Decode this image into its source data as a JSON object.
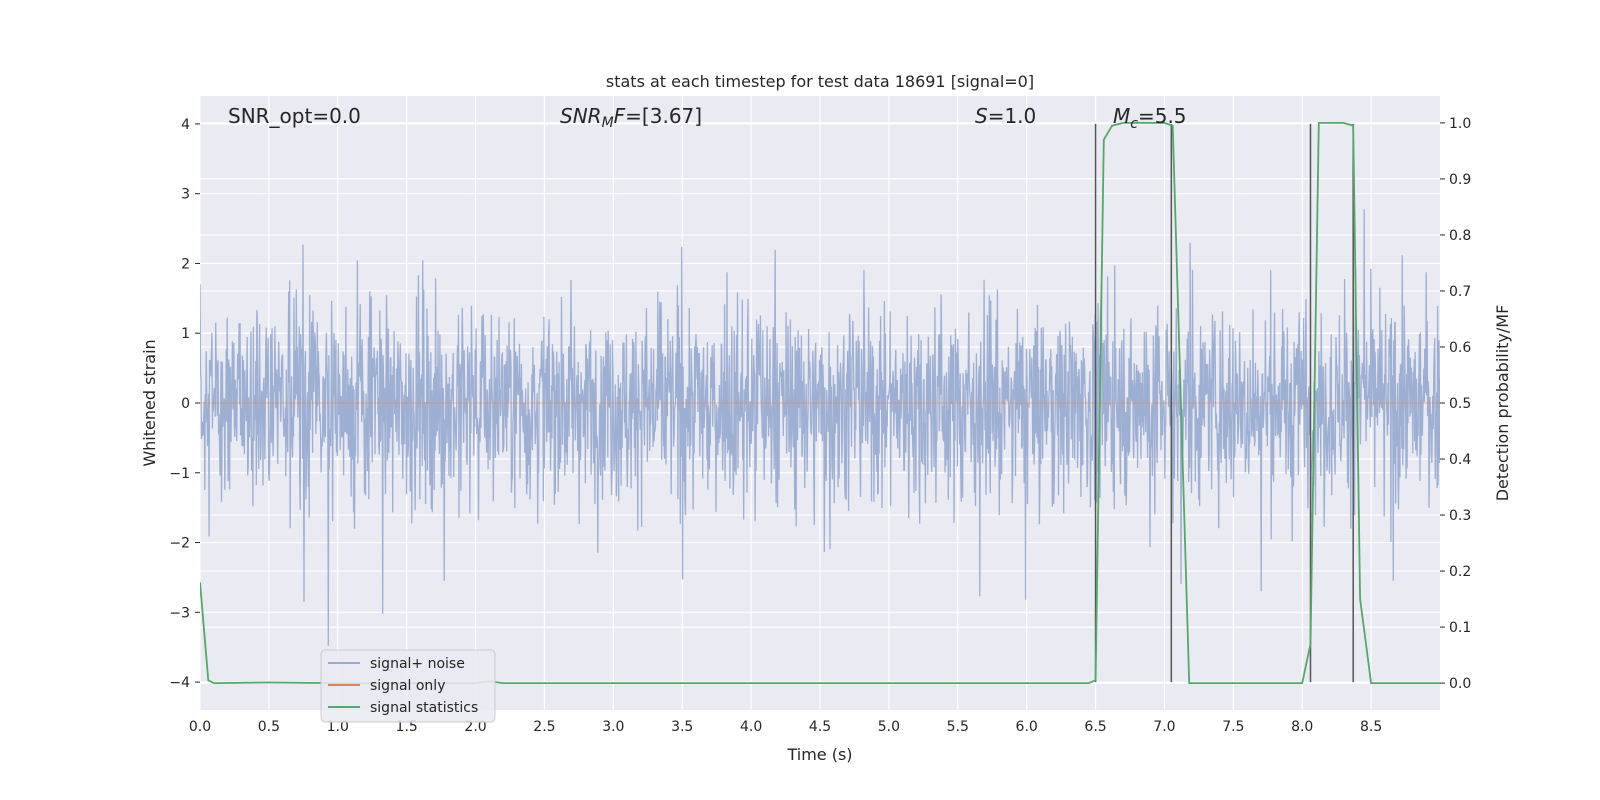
{
  "chart_data": {
    "type": "line",
    "title": "stats at each timestep for test data 18691 [signal=0]",
    "xlabel": "Time (s)",
    "ylabel": "Whitened strain",
    "ylabel_right": "Detection probability/MF",
    "xlim": [
      0.0,
      9.0
    ],
    "ylim": [
      -4.4,
      4.4
    ],
    "ylim_right": [
      -0.048,
      1.048
    ],
    "x_ticks": [
      "0.0",
      "0.5",
      "1.0",
      "1.5",
      "2.0",
      "2.5",
      "3.0",
      "3.5",
      "4.0",
      "4.5",
      "5.0",
      "5.5",
      "6.0",
      "6.5",
      "7.0",
      "7.5",
      "8.0",
      "8.5"
    ],
    "y_ticks": [
      "−4",
      "−3",
      "−2",
      "−1",
      "0",
      "1",
      "2",
      "3",
      "4"
    ],
    "y_ticks_right": [
      "0.0",
      "0.1",
      "0.2",
      "0.3",
      "0.4",
      "0.5",
      "0.6",
      "0.7",
      "0.8",
      "0.9",
      "1.0"
    ],
    "grid": true,
    "annotations": {
      "snr_opt": "SNR_opt=0.0",
      "snr_mf": "=[3.67]",
      "snr_mf_symbol": "SNR",
      "snr_mf_sub": "M",
      "snr_mf_f": "F",
      "s_label": "=1.0",
      "s_symbol": "S",
      "mc_label": "=5.5",
      "mc_symbol": "M",
      "mc_sub": "c"
    },
    "legend": {
      "placement": "lower-left",
      "entries": [
        "signal+ noise",
        "signal only",
        "signal statistics"
      ]
    },
    "colors": {
      "noise": "#9aacd2",
      "signal": "#dd8452",
      "stat": "#55a868",
      "vline": "#555555",
      "background": "#eaeaf2",
      "grid": "#ffffff"
    },
    "series": [
      {
        "name": "signal+ noise",
        "note_values": "dense whitened strain noise, roughly within ±2 with peaks near ±4",
        "amplitude_typical": 2.0,
        "amplitude_peak": 4.0
      },
      {
        "name": "signal only",
        "x": [
          0.0,
          9.0
        ],
        "y": [
          0.0,
          0.0
        ]
      },
      {
        "name": "signal statistics",
        "axis": "right",
        "x": [
          0.0,
          0.06,
          0.1,
          0.5,
          1.0,
          2.0,
          2.1,
          2.2,
          2.5,
          3.0,
          4.0,
          5.0,
          6.0,
          6.45,
          6.5,
          6.56,
          6.62,
          6.7,
          7.0,
          7.06,
          7.18,
          7.5,
          8.0,
          8.06,
          8.12,
          8.2,
          8.3,
          8.37,
          8.42,
          8.5,
          9.0
        ],
        "y": [
          0.18,
          0.005,
          0.0,
          0.001,
          0.0,
          0.0,
          0.003,
          0.0,
          0.0,
          0.0,
          0.0,
          0.0,
          0.0,
          0.0,
          0.005,
          0.97,
          0.995,
          1.0,
          1.0,
          0.995,
          0.0,
          0.0,
          0.0,
          0.07,
          1.0,
          1.0,
          1.0,
          0.995,
          0.15,
          0.0,
          0.0
        ]
      }
    ],
    "vertical_lines": [
      {
        "x": 6.5,
        "y_top": 4.0,
        "y_bottom": -4.0
      },
      {
        "x": 7.05,
        "y_top": 4.0,
        "y_bottom": -4.0
      },
      {
        "x": 8.06,
        "y_top": 4.0,
        "y_bottom": -4.0
      },
      {
        "x": 8.37,
        "y_top": 4.0,
        "y_bottom": -4.0
      }
    ]
  }
}
